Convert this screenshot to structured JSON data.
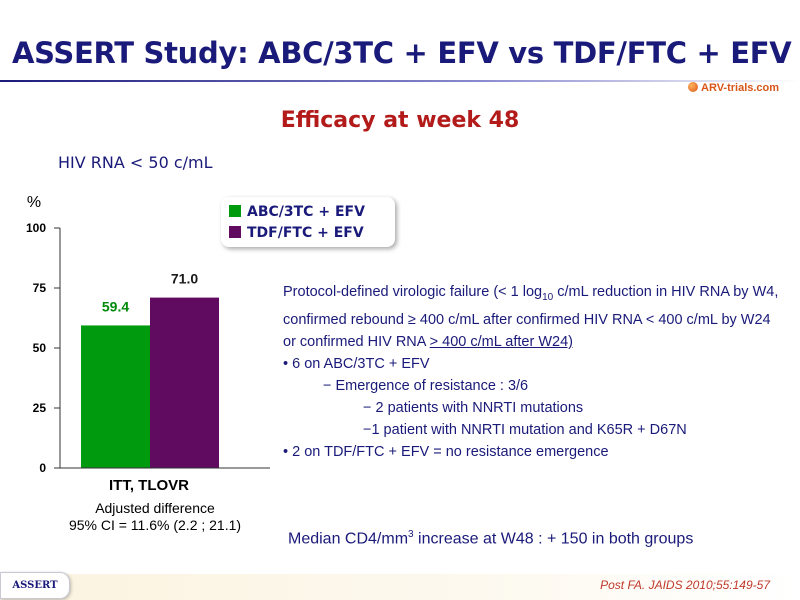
{
  "slide": {
    "title": "ASSERT Study: ABC/3TC + EFV vs TDF/FTC + EFV",
    "subtitle": "Efficacy at week 48",
    "logo_text": "ARV-trials.com"
  },
  "chart_data": {
    "type": "bar",
    "title": "HIV RNA < 50 c/mL",
    "ylabel": "%",
    "ylim": [
      0,
      100
    ],
    "yticks": [
      0,
      25,
      50,
      75,
      100
    ],
    "categories": [
      "ITT, TLOVR"
    ],
    "series": [
      {
        "name": "ABC/3TC + EFV",
        "color": "#009a0f",
        "values": [
          59.4
        ],
        "label": "59.4"
      },
      {
        "name": "TDF/FTC + EFV",
        "color": "#600a60",
        "values": [
          71.0
        ],
        "label": "71.0"
      }
    ],
    "legend": "top-right"
  },
  "adjusted": {
    "line1": "Adjusted difference",
    "line2": "95% CI = 11.6% (2.2 ; 21.1)"
  },
  "notes": {
    "failure_a": "Protocol-defined virologic failure (< 1 log",
    "failure_sub": "10",
    "failure_b": " c/mL reduction in HIV RNA by W4, confirmed rebound ≥ 400 c/mL after confirmed HIV RNA < 400 c/mL by W24 or confirmed HIV RNA ",
    "failure_ge": "> 400 c/mL after W24)",
    "b1": "• 6 on ABC/3TC + EFV",
    "b1a": "− Emergence of resistance : 3/6",
    "b1a1": "− 2 patients with NNRTI mutations",
    "b1a2": "−1 patient with NNRTI mutation and K65R + D67N",
    "b2": "• 2 on TDF/FTC + EFV = no resistance emergence"
  },
  "median": {
    "text_a": "Median CD4/mm",
    "sup": "3",
    "text_b": " increase at W48 : + 150 in both groups"
  },
  "footer": {
    "tab": "ASSERT",
    "citation": "Post FA. JAIDS 2010;55:149-57"
  }
}
